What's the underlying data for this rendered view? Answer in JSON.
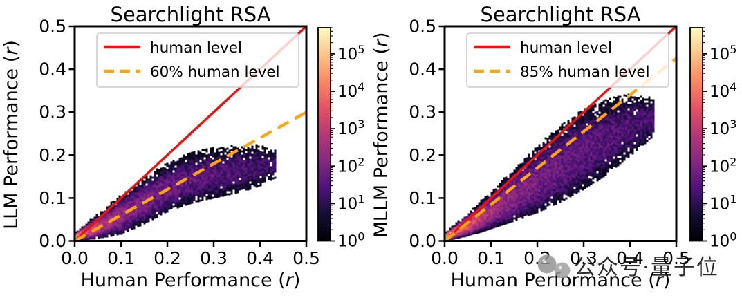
{
  "figure": {
    "background": "#ffffff"
  },
  "colormap": {
    "name": "magma",
    "stops": [
      [
        0,
        "#000004"
      ],
      [
        0.125,
        "#140e36"
      ],
      [
        0.25,
        "#51127c"
      ],
      [
        0.375,
        "#862781"
      ],
      [
        0.5,
        "#b73779"
      ],
      [
        0.625,
        "#e75263"
      ],
      [
        0.75,
        "#fc8961"
      ],
      [
        0.875,
        "#fec488"
      ],
      [
        1,
        "#fcfdbf"
      ]
    ]
  },
  "watermark": {
    "text": "公众号·量子位",
    "color": "#b0b0b0",
    "logo": "qbitai-logo"
  },
  "chart_data": [
    {
      "type": "2d-histogram",
      "title": "Searchlight RSA",
      "xlabel": "Human Performance (r)",
      "ylabel": "LLM Performance (r)",
      "xlim": [
        0,
        0.5
      ],
      "ylim": [
        0,
        0.5
      ],
      "x_ticks": [
        "0.0",
        "0.1",
        "0.2",
        "0.3",
        "0.4",
        "0.5"
      ],
      "y_ticks": [
        "0.0",
        "0.1",
        "0.2",
        "0.3",
        "0.4",
        "0.5"
      ],
      "legend": {
        "position": "upper left",
        "entries": [
          {
            "label": "human level",
            "color": "#ee1111",
            "style": "solid"
          },
          {
            "label": "60% human level",
            "color": "#ffa60e",
            "style": "dashed"
          }
        ]
      },
      "reference_lines": [
        {
          "label": "human level",
          "slope": 1.0,
          "intercept": 0,
          "color": "#ee1111",
          "style": "solid"
        },
        {
          "label": "60% human level",
          "slope": 0.6,
          "intercept": 0,
          "color": "#ffa60e",
          "style": "dashed"
        }
      ],
      "colorbar": {
        "scale": "log10",
        "tick_exponents": [
          0,
          1,
          2,
          3,
          4,
          5
        ],
        "max_level": 5.7,
        "colormap": "magma"
      },
      "density_cloud": {
        "note": "approximate envelope of searchlight hexbin cloud, read from pixels",
        "x": [
          0.0,
          0.05,
          0.1,
          0.15,
          0.2,
          0.25,
          0.3,
          0.35,
          0.4,
          0.435
        ],
        "top": [
          0.018,
          0.058,
          0.1,
          0.14,
          0.175,
          0.198,
          0.21,
          0.215,
          0.215,
          0.205
        ],
        "bottom": [
          0.0,
          0.006,
          0.016,
          0.04,
          0.068,
          0.088,
          0.1,
          0.112,
          0.128,
          0.148
        ],
        "log10_count_peak": {
          "x": [
            0.0,
            0.03,
            0.07,
            0.12,
            0.2,
            0.3,
            0.435
          ],
          "v": [
            4.3,
            3.5,
            2.6,
            2.1,
            1.75,
            1.5,
            1.15
          ]
        }
      }
    },
    {
      "type": "2d-histogram",
      "title": "Searchlight RSA",
      "xlabel": "Human Performance (r)",
      "ylabel": "MLLM Performance (r)",
      "xlim": [
        0,
        0.5
      ],
      "ylim": [
        0,
        0.5
      ],
      "x_ticks": [
        "0.0",
        "0.1",
        "0.2",
        "0.3",
        "0.4",
        "0.5"
      ],
      "y_ticks": [
        "0.0",
        "0.1",
        "0.2",
        "0.3",
        "0.4",
        "0.5"
      ],
      "legend": {
        "position": "upper left",
        "entries": [
          {
            "label": "human level",
            "color": "#ee1111",
            "style": "solid"
          },
          {
            "label": "85% human level",
            "color": "#ffa60e",
            "style": "dashed"
          }
        ]
      },
      "reference_lines": [
        {
          "label": "human level",
          "slope": 1.0,
          "intercept": 0,
          "color": "#ee1111",
          "style": "solid"
        },
        {
          "label": "85% human level",
          "slope": 0.85,
          "intercept": 0,
          "color": "#ffa60e",
          "style": "dashed"
        }
      ],
      "colorbar": {
        "scale": "log10",
        "tick_exponents": [
          0,
          1,
          2,
          3,
          4,
          5
        ],
        "max_level": 5.7,
        "colormap": "magma"
      },
      "density_cloud": {
        "note": "approximate envelope of searchlight hexbin cloud, read from pixels",
        "x": [
          0.0,
          0.05,
          0.1,
          0.15,
          0.2,
          0.25,
          0.3,
          0.35,
          0.4,
          0.455
        ],
        "top": [
          0.018,
          0.06,
          0.11,
          0.163,
          0.214,
          0.262,
          0.3,
          0.323,
          0.335,
          0.328
        ],
        "bottom": [
          0.0,
          0.012,
          0.028,
          0.046,
          0.066,
          0.09,
          0.12,
          0.155,
          0.198,
          0.248
        ],
        "log10_count_peak": {
          "x": [
            0.0,
            0.03,
            0.07,
            0.12,
            0.2,
            0.3,
            0.455
          ],
          "v": [
            4.75,
            4.0,
            3.0,
            2.3,
            1.9,
            1.6,
            1.3
          ]
        }
      }
    }
  ]
}
